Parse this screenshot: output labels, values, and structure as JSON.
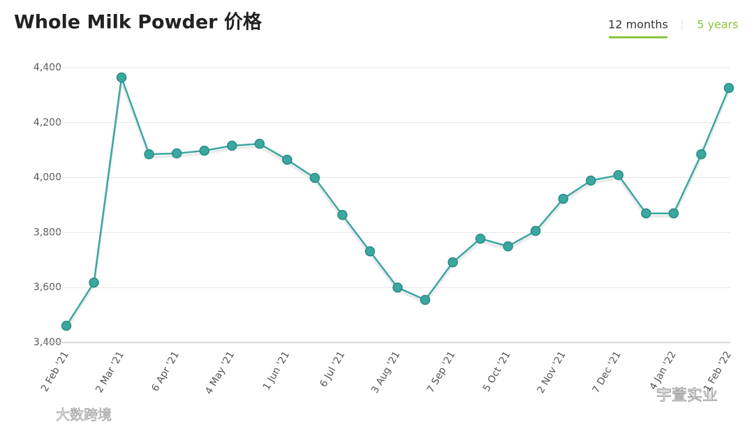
{
  "chart_data": {
    "type": "line",
    "title": "Whole Milk Powder 价格",
    "tabs": [
      "12 months",
      "5 years"
    ],
    "categories": [
      "2 Feb '21",
      null,
      "2 Mar '21",
      null,
      "6 Apr '21",
      null,
      "4 May '21",
      null,
      "1 Jun '21",
      null,
      "6 Jul '21",
      null,
      "3 Aug '21",
      null,
      "7 Sep '21",
      null,
      "5 Oct '21",
      null,
      "2 Nov '21",
      null,
      "7 Dec '21",
      null,
      "4 Jan '22",
      null,
      "1 Feb '22"
    ],
    "series": [
      {
        "name": "Whole Milk Powder",
        "color": "#3ba7a1",
        "values": [
          3461,
          3618,
          4364,
          4085,
          4088,
          4098,
          4116,
          4123,
          4065,
          3999,
          3864,
          3732,
          3600,
          3555,
          3692,
          3778,
          3750,
          3806,
          3923,
          3989,
          4009,
          3870,
          3870,
          4085,
          4326
        ]
      }
    ],
    "ylim": [
      3400,
      4400
    ],
    "yticks": [
      {
        "value": 3400,
        "label": "3,400"
      },
      {
        "value": 3600,
        "label": "3,600"
      },
      {
        "value": 3800,
        "label": "3,800"
      },
      {
        "value": 4000,
        "label": "4,000"
      },
      {
        "value": 4200,
        "label": "4,200"
      },
      {
        "value": 4400,
        "label": "4,400"
      }
    ],
    "grid": true,
    "watermarks": [
      "大数跨境",
      "宇萱实业"
    ]
  }
}
